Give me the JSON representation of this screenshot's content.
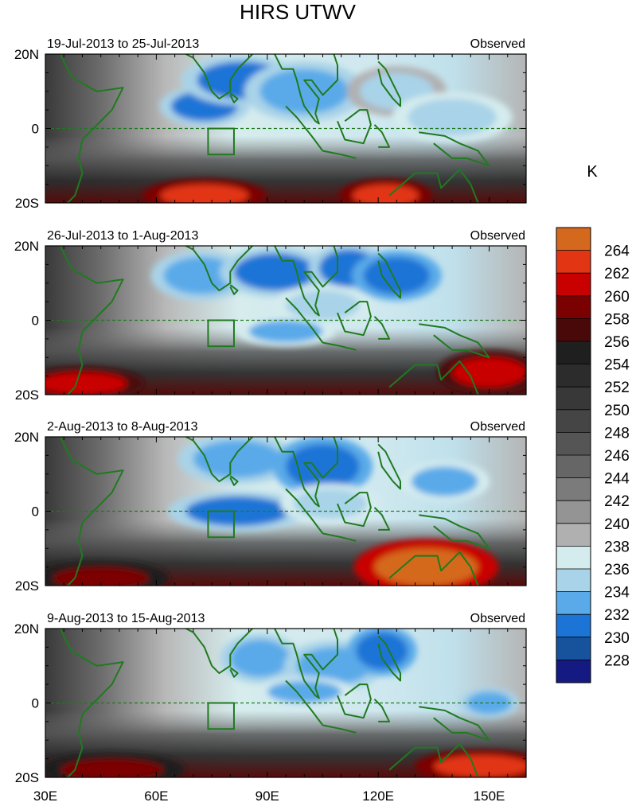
{
  "chart_data": {
    "type": "heatmap",
    "title": "HIRS UTWV",
    "units": "K",
    "x_ticks": [
      "30E",
      "60E",
      "90E",
      "120E",
      "150E"
    ],
    "y_ticks": [
      "20N",
      "0",
      "20S"
    ],
    "xlim": [
      30,
      160
    ],
    "ylim": [
      -20,
      20
    ],
    "equator_dashed_line": true,
    "coastlines_color": "#1f7a1f",
    "box_region": {
      "lon": [
        74,
        81
      ],
      "lat": [
        -7,
        0
      ]
    },
    "panels": [
      {
        "period": "19-Jul-2013 to 25-Jul-2013",
        "label": "Observed",
        "features": [
          {
            "kind": "moist",
            "lon": 73,
            "lat": 6,
            "rx": 9,
            "ry": 4,
            "value": 231
          },
          {
            "kind": "moist",
            "lon": 83,
            "lat": 13,
            "rx": 12,
            "ry": 5,
            "value": 231
          },
          {
            "kind": "moist",
            "lon": 100,
            "lat": 10,
            "rx": 12,
            "ry": 6,
            "value": 232
          },
          {
            "kind": "moist",
            "lon": 125,
            "lat": 10,
            "rx": 10,
            "ry": 5,
            "value": 235
          },
          {
            "kind": "moist",
            "lon": 140,
            "lat": 3,
            "rx": 12,
            "ry": 5,
            "value": 234
          },
          {
            "kind": "dry",
            "lon": 73,
            "lat": -18,
            "rx": 12,
            "ry": 3,
            "value": 262
          },
          {
            "kind": "dry",
            "lon": 122,
            "lat": -18,
            "rx": 9,
            "ry": 3,
            "value": 262
          }
        ]
      },
      {
        "period": "26-Jul-2013 to 1-Aug-2013",
        "label": "Observed",
        "features": [
          {
            "kind": "moist",
            "lon": 72,
            "lat": 12,
            "rx": 10,
            "ry": 5,
            "value": 232
          },
          {
            "kind": "moist",
            "lon": 92,
            "lat": 13,
            "rx": 11,
            "ry": 5,
            "value": 231
          },
          {
            "kind": "moist",
            "lon": 112,
            "lat": 14,
            "rx": 8,
            "ry": 5,
            "value": 231
          },
          {
            "kind": "moist",
            "lon": 125,
            "lat": 12,
            "rx": 9,
            "ry": 5,
            "value": 230
          },
          {
            "kind": "moist",
            "lon": 105,
            "lat": 4,
            "rx": 10,
            "ry": 4,
            "value": 234
          },
          {
            "kind": "moist",
            "lon": 95,
            "lat": -3,
            "rx": 10,
            "ry": 3,
            "value": 233
          },
          {
            "kind": "dry",
            "lon": 40,
            "lat": -17,
            "rx": 12,
            "ry": 3,
            "value": 260
          },
          {
            "kind": "dry",
            "lon": 150,
            "lat": -14,
            "rx": 10,
            "ry": 4,
            "value": 260
          }
        ]
      },
      {
        "period": "2-Aug-2013 to 8-Aug-2013",
        "label": "Observed",
        "features": [
          {
            "kind": "moist",
            "lon": 82,
            "lat": 14,
            "rx": 12,
            "ry": 5,
            "value": 232
          },
          {
            "kind": "moist",
            "lon": 105,
            "lat": 12,
            "rx": 10,
            "ry": 6,
            "value": 230
          },
          {
            "kind": "moist",
            "lon": 138,
            "lat": 8,
            "rx": 9,
            "ry": 4,
            "value": 233
          },
          {
            "kind": "moist",
            "lon": 82,
            "lat": 0,
            "rx": 14,
            "ry": 4,
            "value": 231
          },
          {
            "kind": "moist",
            "lon": 107,
            "lat": 2,
            "rx": 10,
            "ry": 4,
            "value": 234
          },
          {
            "kind": "dry",
            "lon": 133,
            "lat": -15,
            "rx": 14,
            "ry": 5,
            "value": 264
          },
          {
            "kind": "dry",
            "lon": 45,
            "lat": -18,
            "rx": 13,
            "ry": 3,
            "value": 258
          }
        ]
      },
      {
        "period": "9-Aug-2013 to 15-Aug-2013",
        "label": "Observed",
        "features": [
          {
            "kind": "moist",
            "lon": 88,
            "lat": 12,
            "rx": 8,
            "ry": 5,
            "value": 232
          },
          {
            "kind": "moist",
            "lon": 108,
            "lat": 10,
            "rx": 10,
            "ry": 5,
            "value": 232
          },
          {
            "kind": "moist",
            "lon": 121,
            "lat": 14,
            "rx": 7,
            "ry": 5,
            "value": 230
          },
          {
            "kind": "moist",
            "lon": 100,
            "lat": 3,
            "rx": 10,
            "ry": 3,
            "value": 233
          },
          {
            "kind": "moist",
            "lon": 150,
            "lat": 0,
            "rx": 6,
            "ry": 3,
            "value": 232
          },
          {
            "kind": "dry",
            "lon": 148,
            "lat": -17,
            "rx": 13,
            "ry": 3,
            "value": 262
          },
          {
            "kind": "dry",
            "lon": 48,
            "lat": -18,
            "rx": 14,
            "ry": 3,
            "value": 258
          }
        ]
      }
    ],
    "colorbar": {
      "labels": [
        "264",
        "262",
        "260",
        "258",
        "256",
        "254",
        "252",
        "250",
        "248",
        "246",
        "244",
        "242",
        "240",
        "238",
        "236",
        "234",
        "232",
        "230",
        "228"
      ],
      "colors": [
        "#d4691e",
        "#e23514",
        "#c90000",
        "#7b0000",
        "#4a0909",
        "#1f1f1f",
        "#2c2c2c",
        "#383838",
        "#454545",
        "#555555",
        "#666666",
        "#7b7b7b",
        "#949494",
        "#b0b0b0",
        "#d5ecee",
        "#a9d3e8",
        "#5aaae9",
        "#1c74d6",
        "#16539c",
        "#151a82"
      ]
    }
  }
}
